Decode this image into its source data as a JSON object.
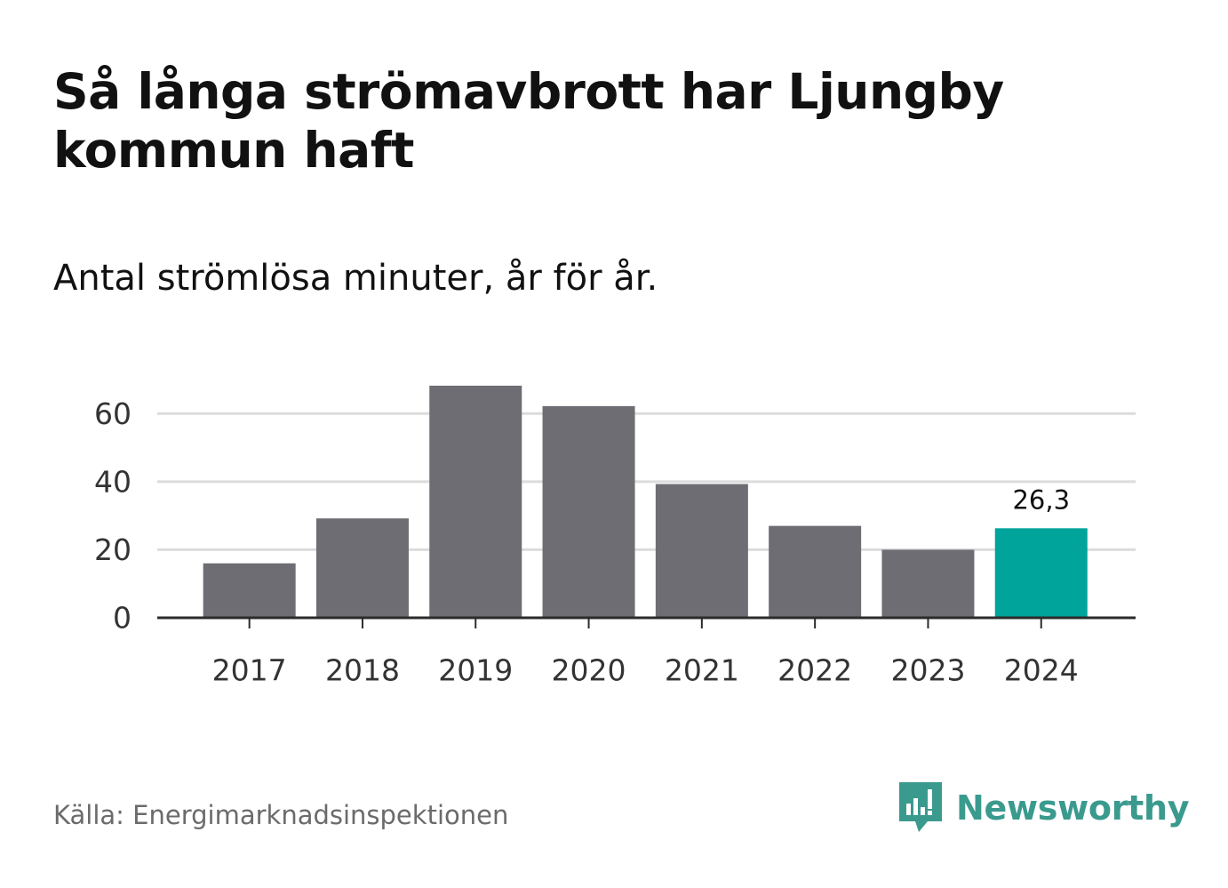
{
  "header": {
    "title": "Så långa strömavbrott har Ljungby kommun haft",
    "subtitle": "Antal strömlösa minuter, år för år."
  },
  "chart_data": {
    "type": "bar",
    "title": "Så långa strömavbrott har Ljungby kommun haft",
    "subtitle": "Antal strömlösa minuter, år för år.",
    "xlabel": "",
    "ylabel": "",
    "categories": [
      "2017",
      "2018",
      "2019",
      "2020",
      "2021",
      "2022",
      "2023",
      "2024"
    ],
    "values": [
      16,
      29.2,
      68.2,
      62.2,
      39.3,
      27,
      20,
      26.3
    ],
    "ylim": [
      0,
      70
    ],
    "yticks": [
      0,
      20,
      40,
      60
    ],
    "ytick_labels": [
      "0",
      "20",
      "40",
      "60"
    ],
    "grid": true,
    "highlight_index": 7,
    "data_labels": [
      {
        "index": 7,
        "text": "26,3"
      }
    ],
    "colors": {
      "bar": "#6e6d73",
      "highlight": "#00a49a",
      "grid": "#dcdcdc",
      "axis": "#2b2b2b"
    }
  },
  "footer": {
    "source": "Källa: Energimarknadsinspektionen",
    "brand": "Newsworthy",
    "brand_color": "#3a9a8e",
    "brand_icon": "newsworthy-logo-icon"
  }
}
